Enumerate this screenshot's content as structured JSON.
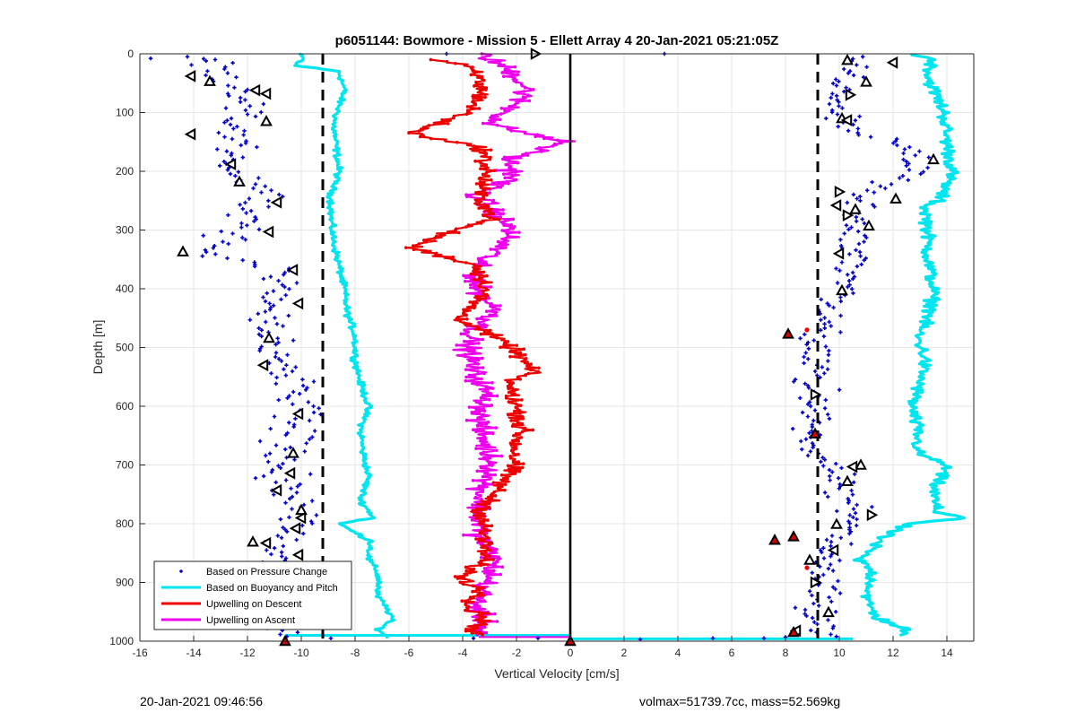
{
  "chart_data": {
    "type": "scatter",
    "title": "p6051144: Bowmore - Mission 5 - Ellett Array 4 20-Jan-2021 05:21:05Z",
    "xlabel": "Vertical Velocity [cm/s]",
    "ylabel": "Depth [m]",
    "xlim": [
      -16,
      15
    ],
    "ylim": [
      0,
      1000
    ],
    "y_reversed": true,
    "grid": true,
    "legend_position": "bottom-left",
    "x_ticks": [
      "-16",
      "-14",
      "-12",
      "-10",
      "-8",
      "-6",
      "-4",
      "-2",
      "0",
      "2",
      "4",
      "6",
      "8",
      "10",
      "12",
      "14"
    ],
    "y_ticks": [
      "0",
      "100",
      "200",
      "300",
      "400",
      "500",
      "600",
      "700",
      "800",
      "900",
      "1000"
    ],
    "reference_lines": {
      "dashed_x": [
        -9.2,
        9.2
      ],
      "solid_x": [
        0
      ]
    },
    "colors": {
      "pressure": "#0000cc",
      "buoyancy": "#00e5ee",
      "descent": "#ee0000",
      "ascent": "#ee00ee",
      "grid": "#e6e6e6"
    },
    "series": [
      {
        "name": "Based on Pressure Change",
        "style": "points",
        "left_profile_depth": [
          0,
          40,
          80,
          120,
          160,
          200,
          240,
          280,
          320,
          340,
          360,
          400,
          440,
          480,
          520,
          560,
          600,
          640,
          680,
          720,
          760,
          800,
          840,
          880,
          920,
          960,
          1000
        ],
        "left_profile_center": [
          -14,
          -13.2,
          -12,
          -12.4,
          -12.8,
          -12.3,
          -11.2,
          -11.8,
          -12.8,
          -13.8,
          -11,
          -10.6,
          -11.5,
          -11.2,
          -11,
          -10.4,
          -10.2,
          -10.5,
          -10.6,
          -10.8,
          -10.3,
          -10.2,
          -11,
          -10.6,
          -10.8,
          -10.6,
          -10.7
        ],
        "right_profile_depth": [
          0,
          40,
          80,
          120,
          160,
          200,
          240,
          280,
          320,
          360,
          400,
          440,
          480,
          520,
          560,
          600,
          640,
          680,
          720,
          760,
          800,
          840,
          880,
          920,
          960,
          1000
        ],
        "right_profile_center": [
          10.8,
          10.5,
          10.2,
          10.3,
          12.6,
          12.8,
          10.6,
          10.8,
          10.6,
          10.3,
          10.2,
          9.4,
          9.1,
          9.1,
          9.0,
          9.1,
          9.1,
          9.3,
          9.9,
          10.3,
          10.5,
          9.6,
          9.2,
          9.2,
          9.3,
          9.2
        ]
      },
      {
        "name": "Based on Buoyancy and Pitch",
        "style": "line",
        "left_depth": [
          0,
          10,
          15,
          20,
          30,
          60,
          90,
          120,
          160,
          200,
          240,
          280,
          320,
          360,
          400,
          440,
          480,
          520,
          560,
          600,
          640,
          680,
          720,
          760,
          790,
          800,
          810,
          830,
          860,
          880,
          900,
          920,
          940,
          960,
          980,
          995
        ],
        "left_x": [
          -10.1,
          -9.9,
          -10.2,
          -10.2,
          -8.6,
          -8.4,
          -8.6,
          -8.8,
          -8.7,
          -8.6,
          -8.9,
          -8.9,
          -8.8,
          -8.6,
          -8.4,
          -8.3,
          -8.0,
          -8.0,
          -7.8,
          -7.5,
          -7.8,
          -7.7,
          -7.5,
          -7.8,
          -7.3,
          -8.6,
          -8.2,
          -7.4,
          -7.5,
          -7.2,
          -7.1,
          -7.2,
          -6.9,
          -6.6,
          -7.1,
          -6.8
        ],
        "right_depth": [
          0,
          10,
          40,
          100,
          150,
          200,
          220,
          250,
          260,
          300,
          350,
          400,
          440,
          480,
          520,
          560,
          600,
          640,
          680,
          700,
          740,
          780,
          790,
          800,
          820,
          850,
          860,
          880,
          900,
          930,
          960,
          980,
          990
        ],
        "right_x": [
          12.7,
          13.5,
          13.3,
          13.9,
          14.0,
          14.2,
          14.0,
          13.7,
          13.2,
          13.3,
          13.3,
          13.5,
          13.4,
          12.9,
          13.2,
          13.0,
          12.7,
          12.9,
          12.9,
          14.0,
          13.5,
          13.6,
          14.8,
          12.5,
          11.7,
          11.0,
          10.7,
          11.2,
          11.2,
          11.0,
          11.4,
          12.5,
          12.2
        ]
      },
      {
        "name": "Upwelling on Descent",
        "style": "line",
        "depth": [
          10,
          20,
          40,
          70,
          100,
          135,
          160,
          200,
          240,
          280,
          300,
          330,
          360,
          400,
          450,
          480,
          500,
          540,
          560,
          600,
          640,
          660,
          700,
          740,
          780,
          820,
          860,
          890,
          900,
          920,
          940,
          960,
          980,
          990
        ],
        "x": [
          -5.1,
          -3.9,
          -3.4,
          -3.3,
          -3.8,
          -5.9,
          -3.3,
          -3.1,
          -3.4,
          -2.9,
          -4.3,
          -5.9,
          -3.5,
          -3.1,
          -4.1,
          -2.9,
          -2.2,
          -1.4,
          -2.3,
          -2.0,
          -1.8,
          -2.0,
          -2.1,
          -2.7,
          -3.3,
          -3.2,
          -3.2,
          -4.0,
          -3.8,
          -3.2,
          -3.9,
          -3.1,
          -3.6,
          -3.4
        ]
      },
      {
        "name": "Upwelling on Ascent",
        "style": "line",
        "depth": [
          0,
          30,
          60,
          90,
          120,
          150,
          180,
          210,
          240,
          270,
          300,
          330,
          360,
          400,
          440,
          470,
          500,
          540,
          580,
          620,
          660,
          700,
          740,
          780,
          820,
          860,
          900,
          940,
          970,
          990
        ],
        "x": [
          -3.3,
          -2.2,
          -1.6,
          -2.1,
          -3.0,
          -0.2,
          -2.3,
          -2.1,
          -3.5,
          -2.8,
          -2.2,
          -2.6,
          -3.5,
          -3.5,
          -2.7,
          -3.6,
          -3.8,
          -3.6,
          -3.1,
          -3.4,
          -3.2,
          -2.9,
          -3.3,
          -3.4,
          -3.4,
          -2.8,
          -3.1,
          -3.5,
          -3.2,
          -3.4
        ]
      }
    ],
    "markers": {
      "open_triangles_left": [
        [
          -14.1,
          38
        ],
        [
          -13.4,
          47
        ],
        [
          -11.7,
          62
        ],
        [
          -11.3,
          68
        ],
        [
          -11.3,
          115
        ],
        [
          -14.1,
          137
        ],
        [
          -12.6,
          188
        ],
        [
          -12.3,
          218
        ],
        [
          -10.9,
          253
        ],
        [
          -11.2,
          303
        ],
        [
          -14.4,
          337
        ],
        [
          -10.3,
          368
        ],
        [
          -10.1,
          425
        ],
        [
          -11.2,
          484
        ],
        [
          -11.4,
          530
        ],
        [
          -10.1,
          613
        ],
        [
          -10.3,
          680
        ],
        [
          -10.4,
          714
        ],
        [
          -10.9,
          743
        ],
        [
          -10.0,
          777
        ],
        [
          -10.0,
          790
        ],
        [
          -10.2,
          808
        ],
        [
          -11.8,
          831
        ],
        [
          -11.3,
          833
        ],
        [
          -10.1,
          853
        ],
        [
          -10.7,
          892
        ]
      ],
      "open_triangles_right": [
        [
          -1.3,
          0
        ],
        [
          10.3,
          11
        ],
        [
          12.0,
          15
        ],
        [
          11.0,
          48
        ],
        [
          10.4,
          70
        ],
        [
          10.1,
          110
        ],
        [
          10.3,
          113
        ],
        [
          13.5,
          180
        ],
        [
          10.0,
          235
        ],
        [
          12.1,
          247
        ],
        [
          9.9,
          258
        ],
        [
          10.6,
          265
        ],
        [
          10.3,
          275
        ],
        [
          11.1,
          293
        ],
        [
          10.0,
          340
        ],
        [
          10.1,
          403
        ],
        [
          9.1,
          580
        ],
        [
          10.8,
          700
        ],
        [
          10.5,
          703
        ],
        [
          10.3,
          728
        ],
        [
          11.2,
          785
        ],
        [
          9.9,
          801
        ],
        [
          9.8,
          845
        ],
        [
          8.9,
          862
        ],
        [
          9.1,
          900
        ],
        [
          9.6,
          951
        ],
        [
          8.4,
          982
        ]
      ],
      "red_triangles": [
        [
          8.1,
          477
        ],
        [
          9.1,
          647
        ],
        [
          8.3,
          822
        ],
        [
          7.6,
          828
        ],
        [
          0,
          1000
        ],
        [
          -10.6,
          1000
        ],
        [
          8.3,
          985
        ]
      ],
      "red_dots": [
        [
          8.8,
          470
        ],
        [
          8.8,
          875
        ]
      ]
    },
    "legend": [
      "Based on Pressure Change",
      "Based on Buoyancy and Pitch",
      "Upwelling on Descent",
      "Upwelling on Ascent"
    ]
  },
  "footer": {
    "date": "20-Jan-2021 09:46:56",
    "info": "volmax=51739.7cc, mass=52.569kg"
  }
}
